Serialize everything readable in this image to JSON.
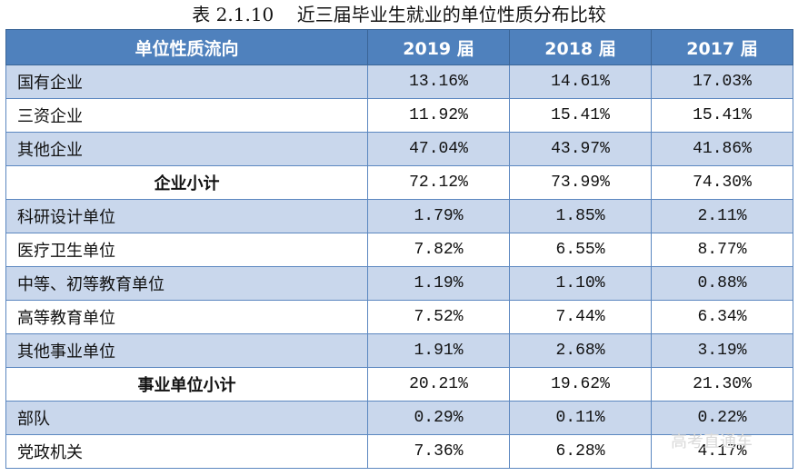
{
  "title": "表 2.1.10    近三届毕业生就业的单位性质分布比较",
  "headers": [
    "单位性质流向",
    "2019 届",
    "2018 届",
    "2017 届"
  ],
  "rows": [
    {
      "name": "国有企业",
      "v": [
        "13.16%",
        "14.61%",
        "17.03%"
      ]
    },
    {
      "name": "三资企业",
      "v": [
        "11.92%",
        "15.41%",
        "15.41%"
      ]
    },
    {
      "name": "其他企业",
      "v": [
        "47.04%",
        "43.97%",
        "41.86%"
      ]
    },
    {
      "name": "企业小计",
      "v": [
        "72.12%",
        "73.99%",
        "74.30%"
      ]
    },
    {
      "name": "科研设计单位",
      "v": [
        "1.79%",
        "1.85%",
        "2.11%"
      ]
    },
    {
      "name": "医疗卫生单位",
      "v": [
        "7.82%",
        "6.55%",
        "8.77%"
      ]
    },
    {
      "name": "中等、初等教育单位",
      "v": [
        "1.19%",
        "1.10%",
        "0.88%"
      ]
    },
    {
      "name": "高等教育单位",
      "v": [
        "7.52%",
        "7.44%",
        "6.34%"
      ]
    },
    {
      "name": "其他事业单位",
      "v": [
        "1.91%",
        "2.68%",
        "3.19%"
      ]
    },
    {
      "name": "事业单位小计",
      "v": [
        "20.21%",
        "19.62%",
        "21.30%"
      ]
    },
    {
      "name": "部队",
      "v": [
        "0.29%",
        "0.11%",
        "0.22%"
      ]
    },
    {
      "name": "党政机关",
      "v": [
        "7.36%",
        "6.28%",
        "4.17%"
      ]
    }
  ],
  "watermark": "高考直通车"
}
